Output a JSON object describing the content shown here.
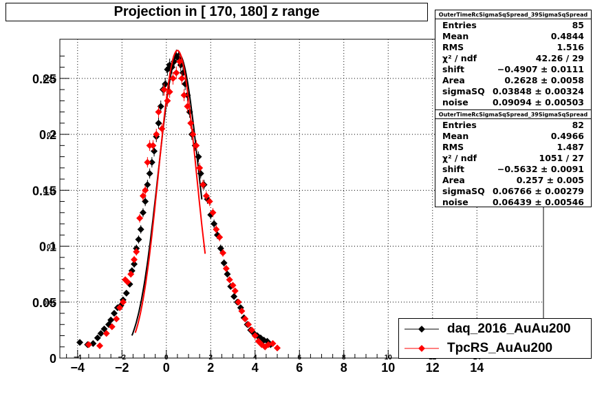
{
  "title": "Projection in [ 170, 180] z range",
  "stats_boxes": [
    {
      "name": "OuterTimeRcSigmaSqSpread_39SigmaSqSpread",
      "rows": [
        {
          "label": "Entries",
          "value": "85"
        },
        {
          "label": "Mean",
          "value": "0.4844"
        },
        {
          "label": "RMS",
          "value": "1.516"
        },
        {
          "label": "χ² / ndf",
          "value": "42.26 / 29"
        },
        {
          "label": "shift",
          "value": "−0.4907 ± 0.0111"
        },
        {
          "label": "Area",
          "value": "0.2628 ± 0.0058"
        },
        {
          "label": "sigmaSQ",
          "value": "0.03848 ± 0.00324"
        },
        {
          "label": "noise",
          "value": "0.09094 ± 0.00503"
        }
      ]
    },
    {
      "name": "OuterTimeRcSigmaSqSpread_39SigmaSqSpread",
      "rows": [
        {
          "label": "Entries",
          "value": "82"
        },
        {
          "label": "Mean",
          "value": "0.4966"
        },
        {
          "label": "RMS",
          "value": "1.487"
        },
        {
          "label": "χ² / ndf",
          "value": "1051 / 27"
        },
        {
          "label": "shift",
          "value": "−0.5632 ± 0.0091"
        },
        {
          "label": "Area",
          "value": "0.257 ± 0.005"
        },
        {
          "label": "sigmaSQ",
          "value": "0.06766 ± 0.00279"
        },
        {
          "label": "noise",
          "value": "0.06439 ± 0.00546"
        }
      ]
    }
  ],
  "legend": [
    {
      "label": "daq_2016_AuAu200",
      "color": "#000000"
    },
    {
      "label": "TpcRS_AuAu200",
      "color": "#ff0000"
    }
  ],
  "chart_data": {
    "type": "scatter",
    "title": "Projection in [ 170, 180] z range",
    "xlim": [
      -4.8,
      17
    ],
    "ylim": [
      0,
      0.285
    ],
    "grid": true,
    "x_ticks": [
      -4,
      -2,
      0,
      2,
      4,
      6,
      8,
      10,
      12,
      14
    ],
    "x_tick_labels": [
      "−4",
      "−2",
      "0",
      "2",
      "4",
      "6",
      "8",
      "10",
      "12",
      "14"
    ],
    "x_small_tick_labels": [
      "−4",
      "−2",
      "0",
      "2",
      "4",
      "6",
      "8",
      "10",
      "12",
      "14"
    ],
    "y_ticks": [
      0,
      0.05,
      0.1,
      0.15,
      0.2,
      0.25
    ],
    "y_tick_labels": [
      "0",
      "0.05",
      "0.1",
      "0.15",
      "0.2",
      "0.25"
    ],
    "y_small_tick_labels": [
      "",
      "0.05",
      "0.1",
      "0.15",
      "0.2",
      "0.25"
    ],
    "legend_position": "bottom-right",
    "series": [
      {
        "name": "daq_2016_AuAu200",
        "color": "#000000",
        "points": [
          [
            -3.9,
            0.014
          ],
          [
            -3.55,
            0.012
          ],
          [
            -3.3,
            0.013
          ],
          [
            -3.1,
            0.018
          ],
          [
            -2.95,
            0.022
          ],
          [
            -2.8,
            0.026
          ],
          [
            -2.6,
            0.03
          ],
          [
            -2.5,
            0.034
          ],
          [
            -2.35,
            0.04
          ],
          [
            -2.2,
            0.045
          ],
          [
            -2.05,
            0.047
          ],
          [
            -1.95,
            0.052
          ],
          [
            -1.8,
            0.058
          ],
          [
            -1.65,
            0.066
          ],
          [
            -1.55,
            0.078
          ],
          [
            -1.45,
            0.084
          ],
          [
            -1.35,
            0.098
          ],
          [
            -1.25,
            0.106
          ],
          [
            -1.15,
            0.115
          ],
          [
            -1.05,
            0.13
          ],
          [
            -0.95,
            0.14
          ],
          [
            -0.85,
            0.155
          ],
          [
            -0.75,
            0.165
          ],
          [
            -0.65,
            0.175
          ],
          [
            -0.55,
            0.185
          ],
          [
            -0.45,
            0.198
          ],
          [
            -0.35,
            0.21
          ],
          [
            -0.25,
            0.225
          ],
          [
            -0.15,
            0.24
          ],
          [
            -0.05,
            0.245
          ],
          [
            0.05,
            0.258
          ],
          [
            0.15,
            0.262
          ],
          [
            0.25,
            0.26
          ],
          [
            0.35,
            0.265
          ],
          [
            0.45,
            0.27
          ],
          [
            0.55,
            0.268
          ],
          [
            0.65,
            0.262
          ],
          [
            0.75,
            0.255
          ],
          [
            0.85,
            0.245
          ],
          [
            0.95,
            0.235
          ],
          [
            1.05,
            0.22
          ],
          [
            1.15,
            0.2
          ],
          [
            1.3,
            0.19
          ],
          [
            1.45,
            0.18
          ],
          [
            1.55,
            0.165
          ],
          [
            1.7,
            0.155
          ],
          [
            1.85,
            0.142
          ],
          [
            2.0,
            0.128
          ],
          [
            2.15,
            0.12
          ],
          [
            2.3,
            0.11
          ],
          [
            2.45,
            0.098
          ],
          [
            2.6,
            0.085
          ],
          [
            2.75,
            0.075
          ],
          [
            2.9,
            0.064
          ],
          [
            3.05,
            0.055
          ],
          [
            3.2,
            0.05
          ],
          [
            3.35,
            0.045
          ],
          [
            3.5,
            0.036
          ],
          [
            3.65,
            0.03
          ],
          [
            3.8,
            0.025
          ],
          [
            3.95,
            0.022
          ],
          [
            4.1,
            0.02
          ],
          [
            4.25,
            0.018
          ],
          [
            4.4,
            0.016
          ],
          [
            4.55,
            0.015
          ],
          [
            4.7,
            0.012
          ]
        ],
        "fit": {
          "shift": 0.55,
          "sigma": 0.92,
          "peak": 0.272,
          "x_range": [
            -1.55,
            1.6
          ]
        }
      },
      {
        "name": "TpcRS_AuAu200",
        "color": "#ff0000",
        "points": [
          [
            -3.5,
            0.012
          ],
          [
            -3.0,
            0.011
          ],
          [
            -2.7,
            0.022
          ],
          [
            -2.45,
            0.028
          ],
          [
            -2.25,
            0.035
          ],
          [
            -2.1,
            0.045
          ],
          [
            -1.95,
            0.05
          ],
          [
            -1.85,
            0.07
          ],
          [
            -1.75,
            0.068
          ],
          [
            -1.6,
            0.075
          ],
          [
            -1.45,
            0.088
          ],
          [
            -1.35,
            0.095
          ],
          [
            -1.2,
            0.125
          ],
          [
            -1.05,
            0.145
          ],
          [
            -0.95,
            0.15
          ],
          [
            -0.85,
            0.175
          ],
          [
            -0.75,
            0.19
          ],
          [
            -0.6,
            0.19
          ],
          [
            -0.45,
            0.2
          ],
          [
            -0.35,
            0.22
          ],
          [
            -0.2,
            0.205
          ],
          [
            -0.1,
            0.24
          ],
          [
            0.05,
            0.23
          ],
          [
            0.15,
            0.238
          ],
          [
            0.3,
            0.25
          ],
          [
            0.45,
            0.255
          ],
          [
            0.6,
            0.265
          ],
          [
            0.7,
            0.25
          ],
          [
            0.8,
            0.235
          ],
          [
            0.95,
            0.225
          ],
          [
            1.1,
            0.21
          ],
          [
            1.2,
            0.2
          ],
          [
            1.35,
            0.19
          ],
          [
            1.5,
            0.17
          ],
          [
            1.65,
            0.155
          ],
          [
            1.8,
            0.145
          ],
          [
            1.95,
            0.14
          ],
          [
            2.1,
            0.13
          ],
          [
            2.25,
            0.115
          ],
          [
            2.4,
            0.108
          ],
          [
            2.55,
            0.094
          ],
          [
            2.7,
            0.08
          ],
          [
            2.85,
            0.07
          ],
          [
            3.0,
            0.065
          ],
          [
            3.1,
            0.06
          ],
          [
            3.25,
            0.05
          ],
          [
            3.4,
            0.042
          ],
          [
            3.55,
            0.035
          ],
          [
            3.7,
            0.03
          ],
          [
            3.85,
            0.025
          ],
          [
            4.0,
            0.02
          ],
          [
            4.15,
            0.015
          ],
          [
            4.3,
            0.012
          ],
          [
            4.45,
            0.01
          ],
          [
            4.6,
            0.012
          ],
          [
            4.8,
            0.013
          ],
          [
            5.0,
            0.009
          ]
        ],
        "fit": {
          "shift": 0.5,
          "sigma": 0.85,
          "peak": 0.275,
          "x_range": [
            -1.4,
            1.75
          ]
        }
      }
    ]
  }
}
